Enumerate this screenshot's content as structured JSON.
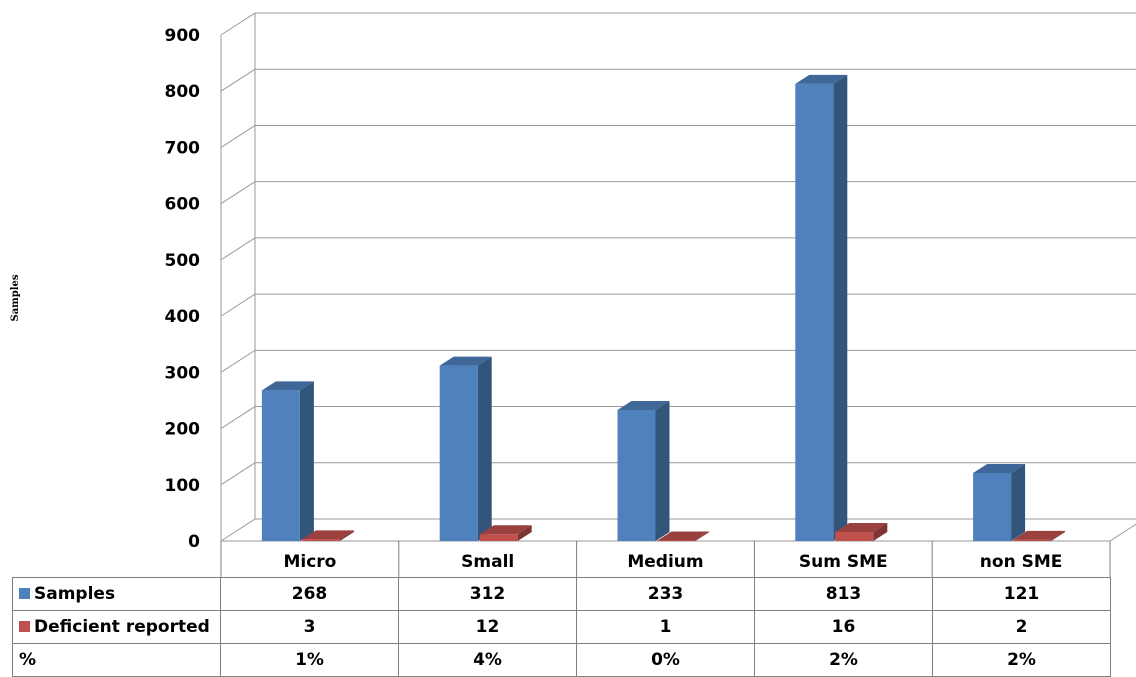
{
  "chart_data": {
    "type": "bar",
    "title": "",
    "ylabel": "Samples",
    "ylim": [
      0,
      900
    ],
    "yticks": [
      0,
      100,
      200,
      300,
      400,
      500,
      600,
      700,
      800,
      900
    ],
    "grid": true,
    "three_d": true,
    "categories": [
      "Micro",
      "Small",
      "Medium",
      "Sum SME",
      "non SME"
    ],
    "series": [
      {
        "name": "Samples",
        "values": [
          268,
          312,
          233,
          813,
          121
        ],
        "color": "#4f81bd"
      },
      {
        "name": "Deficient reported",
        "values": [
          3,
          12,
          1,
          16,
          2
        ],
        "color": "#c0504d"
      }
    ],
    "table": {
      "rows": [
        {
          "label": "Samples",
          "swatch": "#4f81bd",
          "cells": [
            "268",
            "312",
            "233",
            "813",
            "121"
          ]
        },
        {
          "label": "Deficient reported",
          "swatch": "#c0504d",
          "cells": [
            "3",
            "12",
            "1",
            "16",
            "2"
          ]
        },
        {
          "label": "%",
          "swatch": "",
          "cells": [
            "1%",
            "4%",
            "0%",
            "2%",
            "2%"
          ]
        }
      ]
    }
  }
}
